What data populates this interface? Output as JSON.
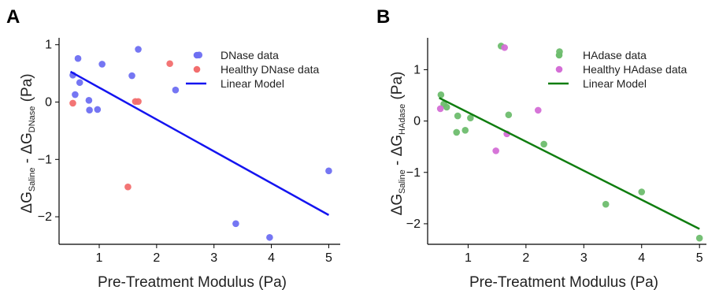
{
  "chart_data": [
    {
      "type": "scatter",
      "panel_label": "A",
      "xlabel": "Pre-Treatment Modulus (Pa)",
      "ylabel": {
        "main1": "ΔG",
        "sub1": "Saline",
        "mid": " - ΔG",
        "sub2": "DNase",
        "unit": " (Pa)"
      },
      "xlim": [
        0.3,
        5.2
      ],
      "ylim": [
        -2.48,
        1.12
      ],
      "xticks": [
        1,
        2,
        3,
        4,
        5
      ],
      "yticks": [
        -2,
        -1,
        0,
        1
      ],
      "grid": false,
      "legend_position": "top-right",
      "series": [
        {
          "name": "DNase data",
          "color": "#6e6ff2",
          "marker": "dot",
          "points": [
            [
              0.54,
              0.47
            ],
            [
              0.58,
              0.13
            ],
            [
              0.63,
              0.76
            ],
            [
              0.66,
              0.34
            ],
            [
              0.82,
              0.03
            ],
            [
              0.83,
              -0.14
            ],
            [
              0.97,
              -0.13
            ],
            [
              1.05,
              0.66
            ],
            [
              1.57,
              0.46
            ],
            [
              1.68,
              0.92
            ],
            [
              2.33,
              0.21
            ],
            [
              2.74,
              0.82
            ],
            [
              3.38,
              -2.12
            ],
            [
              3.97,
              -2.36
            ],
            [
              5.0,
              -1.2
            ]
          ]
        },
        {
          "name": "Healthy DNase data",
          "color": "#f26e6e",
          "marker": "dot",
          "points": [
            [
              0.54,
              -0.02
            ],
            [
              1.5,
              -1.48
            ],
            [
              1.63,
              0.01
            ],
            [
              1.68,
              0.01
            ],
            [
              2.23,
              0.67
            ]
          ]
        },
        {
          "name": "Linear Model",
          "color": "#1414f0",
          "marker": "line",
          "points": [
            [
              0.5,
              0.53
            ],
            [
              5.0,
              -1.97
            ]
          ]
        }
      ]
    },
    {
      "type": "scatter",
      "panel_label": "B",
      "xlabel": "Pre-Treatment Modulus (Pa)",
      "ylabel": {
        "main1": "ΔG",
        "sub1": "Saline",
        "mid": " - ΔG",
        "sub2": "HAdase",
        "unit": " (Pa)"
      },
      "xlim": [
        0.3,
        5.12
      ],
      "ylim": [
        -2.4,
        1.62
      ],
      "xticks": [
        1,
        2,
        3,
        4,
        5
      ],
      "yticks": [
        -2,
        -1,
        0,
        1
      ],
      "grid": false,
      "legend_position": "top-right",
      "series": [
        {
          "name": "HAdase data",
          "color": "#6ebd6e",
          "marker": "dot",
          "points": [
            [
              0.53,
              0.51
            ],
            [
              0.58,
              0.33
            ],
            [
              0.63,
              0.27
            ],
            [
              0.82,
              0.1
            ],
            [
              0.8,
              -0.22
            ],
            [
              0.95,
              -0.18
            ],
            [
              1.04,
              0.06
            ],
            [
              1.57,
              1.46
            ],
            [
              1.7,
              0.12
            ],
            [
              2.31,
              -0.45
            ],
            [
              2.58,
              1.35
            ],
            [
              3.38,
              -1.62
            ],
            [
              4.0,
              -1.38
            ],
            [
              5.0,
              -2.28
            ]
          ]
        },
        {
          "name": "Healthy HAdase data",
          "color": "#d46ed6",
          "marker": "dot",
          "points": [
            [
              0.52,
              0.24
            ],
            [
              1.48,
              -0.58
            ],
            [
              1.63,
              1.43
            ],
            [
              1.67,
              -0.25
            ],
            [
              2.21,
              0.21
            ]
          ]
        },
        {
          "name": "Linear Model",
          "color": "#0f7d0f",
          "marker": "line",
          "points": [
            [
              0.5,
              0.45
            ],
            [
              5.0,
              -2.1
            ]
          ]
        }
      ]
    }
  ]
}
